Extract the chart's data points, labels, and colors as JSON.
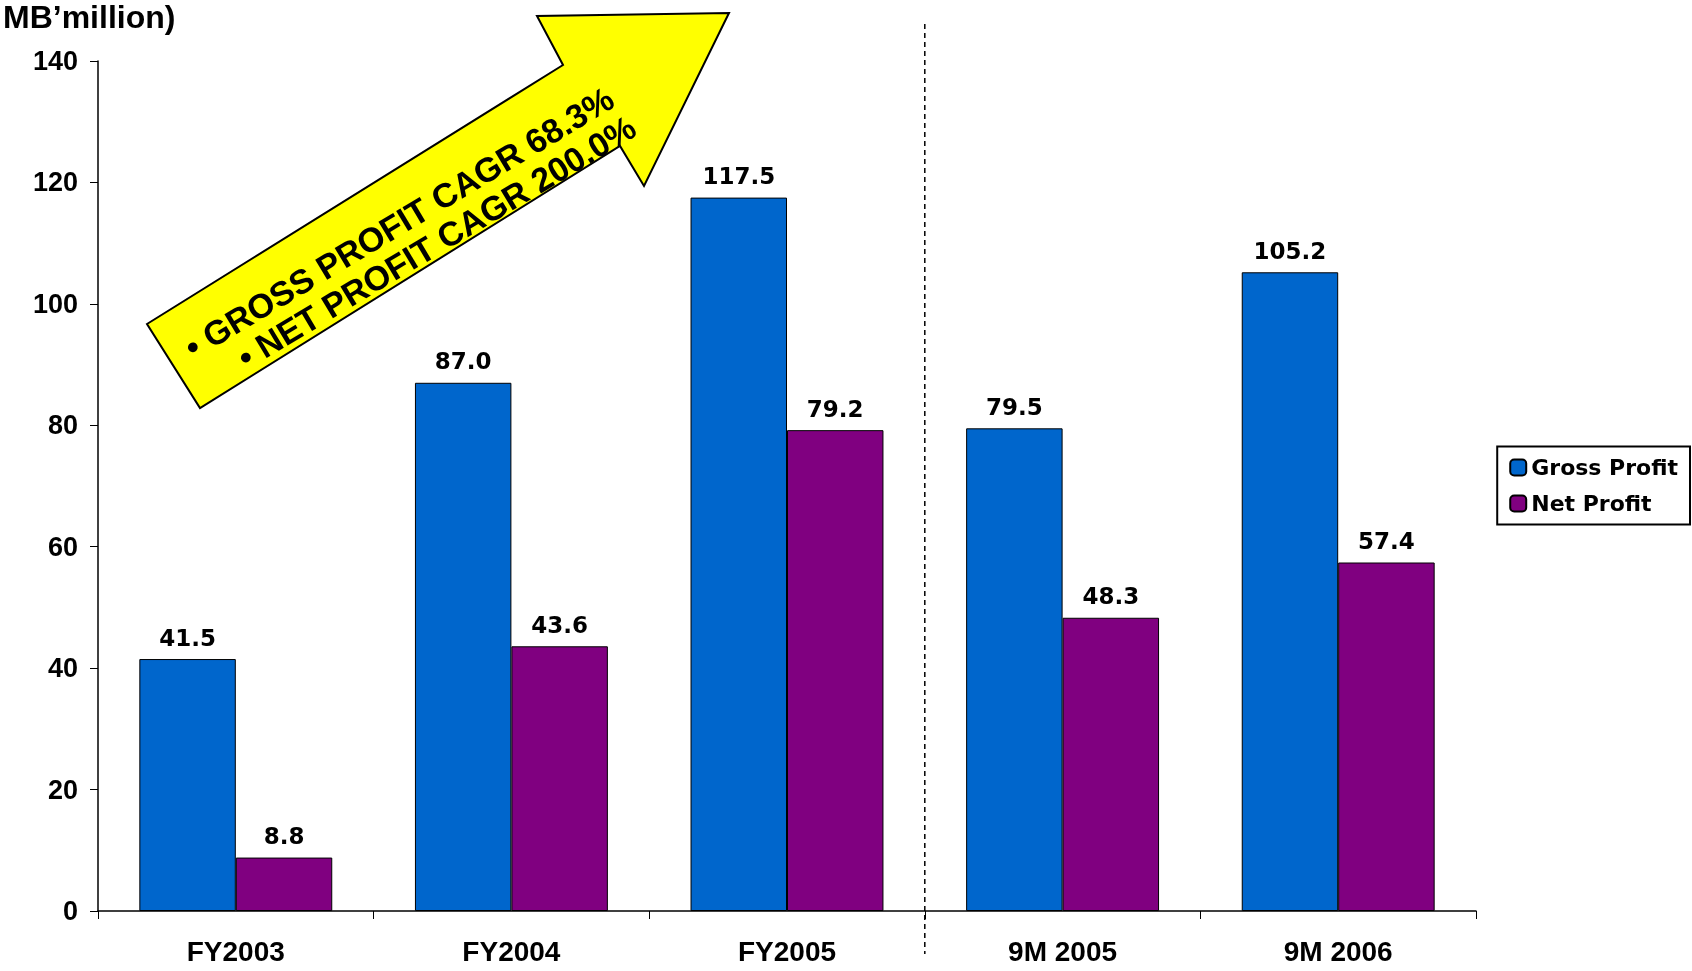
{
  "chart_data": {
    "type": "bar",
    "ylabel": "MB’million)",
    "categories": [
      "FY2003",
      "FY2004",
      "FY2005",
      "9M 2005",
      "9M 2006"
    ],
    "series": [
      {
        "name": "Gross Profit",
        "color": "#0066cc",
        "values": [
          41.5,
          87.0,
          117.5,
          79.5,
          105.2
        ],
        "value_labels": [
          "41.5",
          "87.0",
          "117.5",
          "79.5",
          "105.2"
        ]
      },
      {
        "name": "Net Profit",
        "color": "#800080",
        "values": [
          8.8,
          43.6,
          79.2,
          48.3,
          57.4
        ],
        "value_labels": [
          "8.8",
          "43.6",
          "79.2",
          "48.3",
          "57.4"
        ]
      }
    ],
    "ylim": [
      0,
      140
    ],
    "yticks": [
      0,
      20,
      40,
      60,
      80,
      100,
      120,
      140
    ],
    "grid": false,
    "legend": "right",
    "annotations": [
      "• GROSS PROFIT CAGR 68.3%",
      "• NET PROFIT CAGR 200.0%"
    ]
  }
}
